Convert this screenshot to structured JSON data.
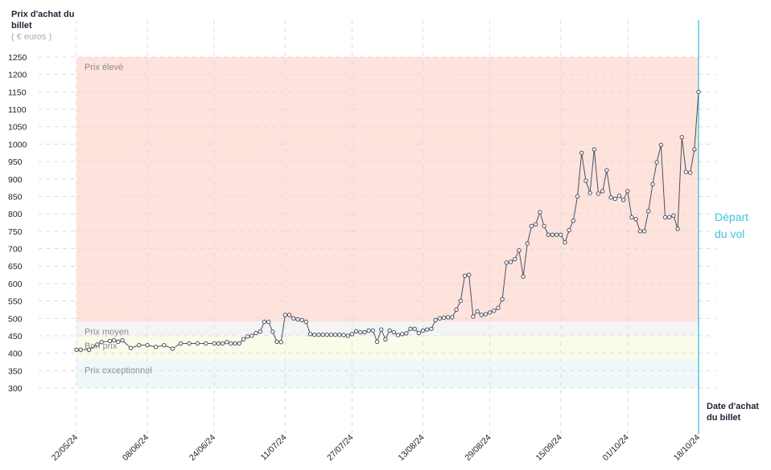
{
  "chart_data": {
    "type": "line",
    "y_title": "Prix d'achat du billet",
    "y_unit": "( € euros )",
    "x_title": "Date d'achat du billet",
    "departure": {
      "date": "18/10/24",
      "label": "Départ du vol",
      "color": "#3cc4dc"
    },
    "bands": [
      {
        "label": "Prix élevé",
        "from": 490,
        "to": 1250,
        "color": "#fde3dc"
      },
      {
        "label": "Prix moyen",
        "from": 450,
        "to": 490,
        "color": "#f4f4f4"
      },
      {
        "label": "Bon prix",
        "from": 380,
        "to": 450,
        "color": "#fbfbea"
      },
      {
        "label": "Prix exceptionnel",
        "from": 300,
        "to": 380,
        "color": "#eef8fb"
      }
    ],
    "color": "#4a4f63",
    "x": [
      "22/05/24",
      "23/05/24",
      "25/05/24",
      "27/05/24",
      "28/05/24",
      "30/05/24",
      "31/05/24",
      "01/06/24",
      "02/06/24",
      "04/06/24",
      "06/06/24",
      "08/06/24",
      "10/06/24",
      "12/06/24",
      "14/06/24",
      "16/06/24",
      "18/06/24",
      "20/06/24",
      "22/06/24",
      "24/06/24",
      "25/06/24",
      "26/06/24",
      "27/06/24",
      "28/06/24",
      "29/06/24",
      "30/06/24",
      "01/07/24",
      "02/07/24",
      "03/07/24",
      "04/07/24",
      "05/07/24",
      "06/07/24",
      "07/07/24",
      "08/07/24",
      "09/07/24",
      "10/07/24",
      "11/07/24",
      "12/07/24",
      "13/07/24",
      "14/07/24",
      "15/07/24",
      "16/07/24",
      "17/07/24",
      "18/07/24",
      "19/07/24",
      "20/07/24",
      "21/07/24",
      "22/07/24",
      "23/07/24",
      "24/07/24",
      "25/07/24",
      "26/07/24",
      "27/07/24",
      "28/07/24",
      "29/07/24",
      "30/07/24",
      "31/07/24",
      "01/08/24",
      "02/08/24",
      "03/08/24",
      "04/08/24",
      "05/08/24",
      "06/08/24",
      "07/08/24",
      "08/08/24",
      "09/08/24",
      "10/08/24",
      "11/08/24",
      "12/08/24",
      "13/08/24",
      "14/08/24",
      "15/08/24",
      "16/08/24",
      "17/08/24",
      "18/08/24",
      "19/08/24",
      "20/08/24",
      "21/08/24",
      "22/08/24",
      "23/08/24",
      "24/08/24",
      "25/08/24",
      "26/08/24",
      "27/08/24",
      "28/08/24",
      "29/08/24",
      "30/08/24",
      "31/08/24",
      "01/09/24",
      "02/09/24",
      "03/09/24",
      "04/09/24",
      "05/09/24",
      "06/09/24",
      "07/09/24",
      "08/09/24",
      "09/09/24",
      "10/09/24",
      "11/09/24",
      "12/09/24",
      "13/09/24",
      "14/09/24",
      "15/09/24",
      "16/09/24",
      "17/09/24",
      "18/09/24",
      "19/09/24",
      "20/09/24",
      "21/09/24",
      "22/09/24",
      "23/09/24",
      "24/09/24",
      "25/09/24",
      "26/09/24",
      "27/09/24",
      "28/09/24",
      "29/09/24",
      "30/09/24",
      "01/10/24",
      "02/10/24",
      "03/10/24",
      "04/10/24",
      "05/10/24",
      "06/10/24",
      "07/10/24",
      "08/10/24",
      "09/10/24",
      "10/10/24",
      "11/10/24",
      "12/10/24",
      "13/10/24",
      "14/10/24",
      "15/10/24",
      "16/10/24",
      "17/10/24",
      "18/10/24"
    ],
    "values": [
      410,
      410,
      410,
      425,
      432,
      435,
      437,
      433,
      437,
      415,
      423,
      423,
      418,
      423,
      413,
      428,
      428,
      428,
      428,
      428,
      428,
      428,
      432,
      428,
      428,
      428,
      440,
      448,
      450,
      458,
      462,
      490,
      490,
      462,
      433,
      432,
      510,
      510,
      500,
      497,
      495,
      490,
      455,
      453,
      453,
      453,
      453,
      453,
      453,
      453,
      452,
      450,
      455,
      463,
      460,
      460,
      465,
      465,
      433,
      468,
      440,
      465,
      460,
      452,
      455,
      457,
      470,
      470,
      458,
      465,
      468,
      470,
      495,
      500,
      502,
      503,
      503,
      525,
      550,
      622,
      625,
      505,
      520,
      510,
      512,
      517,
      522,
      530,
      555,
      660,
      662,
      670,
      695,
      620,
      715,
      765,
      770,
      805,
      765,
      740,
      740,
      740,
      740,
      718,
      753,
      780,
      850,
      975,
      895,
      860,
      985,
      858,
      865,
      925,
      847,
      843,
      852,
      840,
      865,
      790,
      785,
      750,
      750,
      808,
      885,
      948,
      998,
      790,
      790,
      795,
      757,
      1020,
      920,
      918,
      985,
      1150
    ],
    "xlim": [
      "22/05/24",
      "18/10/24"
    ],
    "xticks": [
      "22/05/24",
      "08/06/24",
      "24/06/24",
      "11/07/24",
      "27/07/24",
      "13/08/24",
      "29/08/24",
      "15/09/24",
      "01/10/24",
      "18/10/24"
    ],
    "ylim": [
      300,
      1250
    ],
    "yticks": [
      300,
      350,
      400,
      450,
      500,
      550,
      600,
      650,
      700,
      750,
      800,
      850,
      900,
      950,
      1000,
      1050,
      1100,
      1150,
      1200,
      1250
    ],
    "grid": true
  }
}
